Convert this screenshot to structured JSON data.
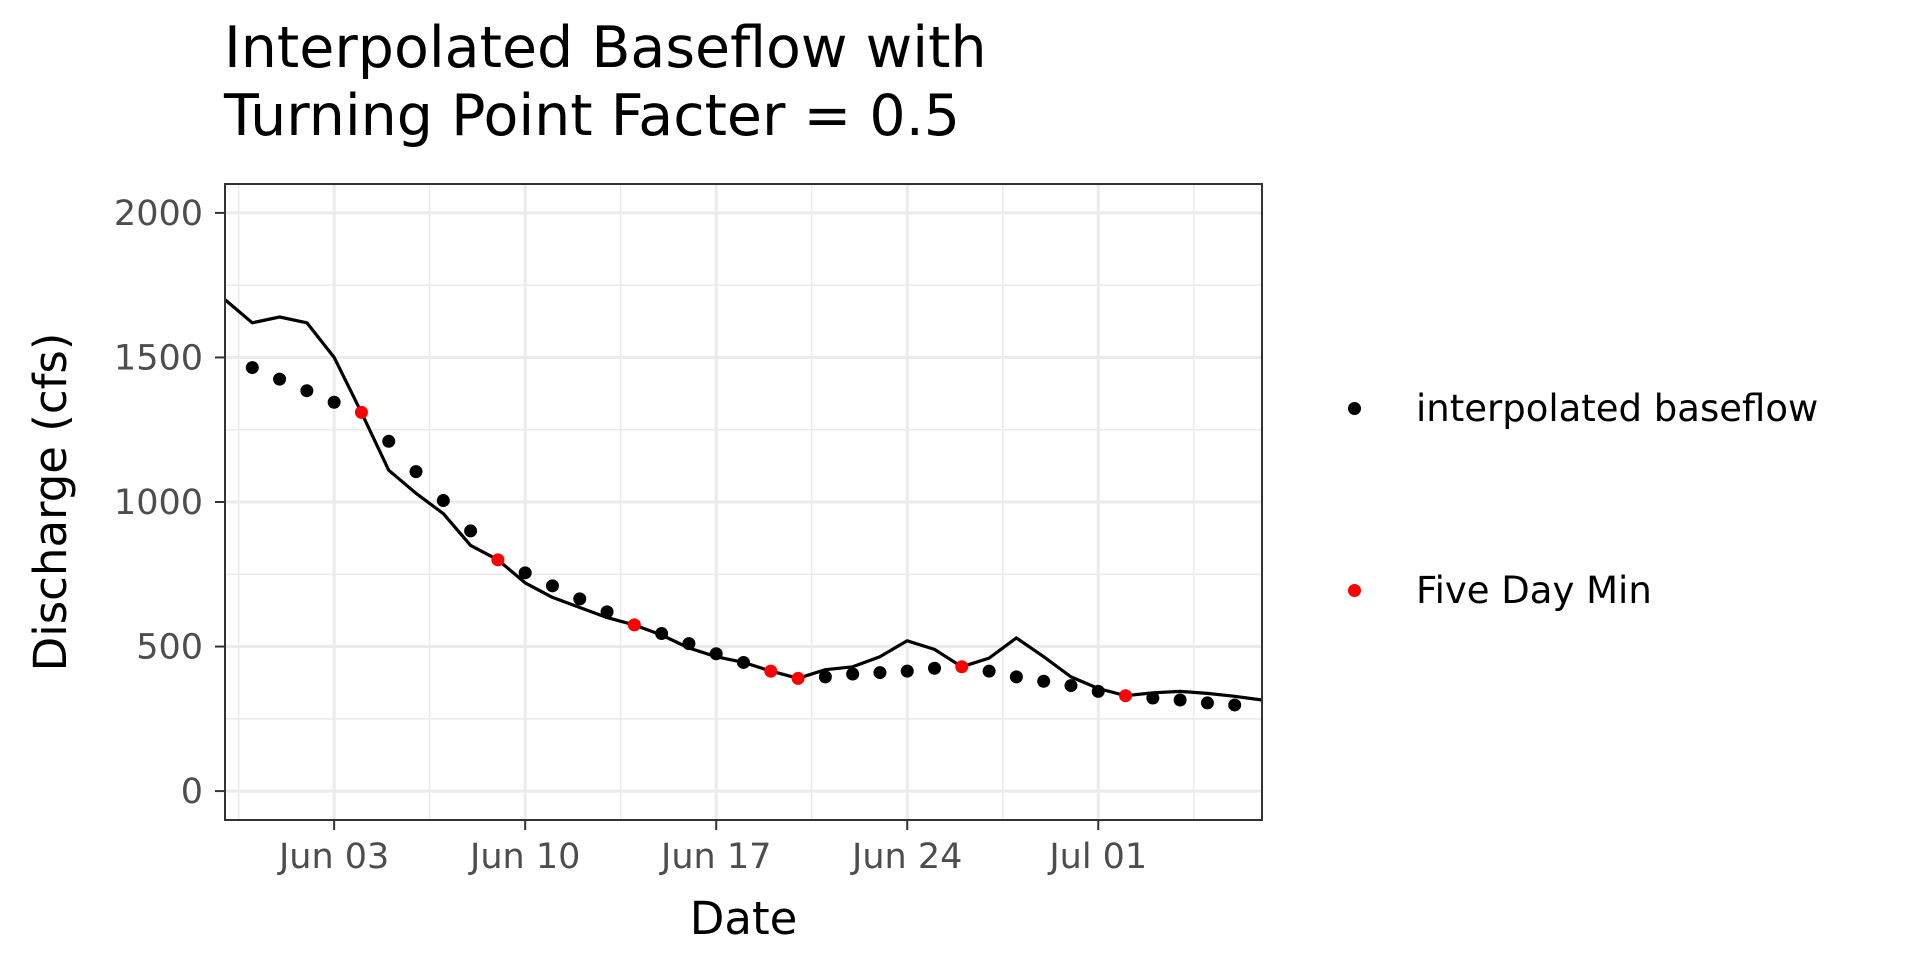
{
  "chart_data": {
    "type": "line",
    "title_lines": [
      "Interpolated Baseflow with",
      "Turning Point Facter = 0.5"
    ],
    "xlabel": "Date",
    "ylabel": "Discharge (cfs)",
    "xlim": [
      "2023-05-30",
      "2023-07-07"
    ],
    "ylim": [
      -100,
      2100
    ],
    "x_ticks": [
      {
        "date": "2023-06-03",
        "label": "Jun 03"
      },
      {
        "date": "2023-06-10",
        "label": "Jun 10"
      },
      {
        "date": "2023-06-17",
        "label": "Jun 17"
      },
      {
        "date": "2023-06-24",
        "label": "Jun 24"
      },
      {
        "date": "2023-07-01",
        "label": "Jul 01"
      }
    ],
    "y_ticks": [
      0,
      500,
      1000,
      1500,
      2000
    ],
    "grid": true,
    "legend_position": "right",
    "series": [
      {
        "kind": "line",
        "color": "#000000",
        "points": [
          [
            "2023-05-30",
            1700
          ],
          [
            "2023-05-31",
            1620
          ],
          [
            "2023-06-01",
            1640
          ],
          [
            "2023-06-02",
            1620
          ],
          [
            "2023-06-03",
            1500
          ],
          [
            "2023-06-04",
            1310
          ],
          [
            "2023-06-05",
            1110
          ],
          [
            "2023-06-06",
            1030
          ],
          [
            "2023-06-07",
            960
          ],
          [
            "2023-06-08",
            850
          ],
          [
            "2023-06-09",
            800
          ],
          [
            "2023-06-10",
            720
          ],
          [
            "2023-06-11",
            670
          ],
          [
            "2023-06-12",
            635
          ],
          [
            "2023-06-13",
            600
          ],
          [
            "2023-06-14",
            575
          ],
          [
            "2023-06-15",
            540
          ],
          [
            "2023-06-16",
            495
          ],
          [
            "2023-06-17",
            465
          ],
          [
            "2023-06-18",
            445
          ],
          [
            "2023-06-19",
            415
          ],
          [
            "2023-06-20",
            390
          ],
          [
            "2023-06-21",
            420
          ],
          [
            "2023-06-22",
            430
          ],
          [
            "2023-06-23",
            465
          ],
          [
            "2023-06-24",
            520
          ],
          [
            "2023-06-25",
            490
          ],
          [
            "2023-06-26",
            430
          ],
          [
            "2023-06-27",
            460
          ],
          [
            "2023-06-28",
            530
          ],
          [
            "2023-06-29",
            465
          ],
          [
            "2023-06-30",
            395
          ],
          [
            "2023-07-01",
            355
          ],
          [
            "2023-07-02",
            330
          ],
          [
            "2023-07-03",
            340
          ],
          [
            "2023-07-04",
            345
          ],
          [
            "2023-07-05",
            338
          ],
          [
            "2023-07-06",
            328
          ],
          [
            "2023-07-07",
            315
          ]
        ]
      },
      {
        "kind": "points",
        "name": "interpolated baseflow",
        "color": "#000000",
        "points": [
          [
            "2023-05-31",
            1465
          ],
          [
            "2023-06-01",
            1425
          ],
          [
            "2023-06-02",
            1385
          ],
          [
            "2023-06-03",
            1345
          ],
          [
            "2023-06-05",
            1210
          ],
          [
            "2023-06-06",
            1105
          ],
          [
            "2023-06-07",
            1005
          ],
          [
            "2023-06-08",
            900
          ],
          [
            "2023-06-10",
            755
          ],
          [
            "2023-06-11",
            710
          ],
          [
            "2023-06-12",
            665
          ],
          [
            "2023-06-13",
            620
          ],
          [
            "2023-06-15",
            545
          ],
          [
            "2023-06-16",
            510
          ],
          [
            "2023-06-17",
            475
          ],
          [
            "2023-06-18",
            445
          ],
          [
            "2023-06-21",
            395
          ],
          [
            "2023-06-22",
            405
          ],
          [
            "2023-06-23",
            410
          ],
          [
            "2023-06-24",
            415
          ],
          [
            "2023-06-25",
            425
          ],
          [
            "2023-06-27",
            415
          ],
          [
            "2023-06-28",
            395
          ],
          [
            "2023-06-29",
            380
          ],
          [
            "2023-06-30",
            365
          ],
          [
            "2023-07-01",
            345
          ],
          [
            "2023-07-03",
            322
          ],
          [
            "2023-07-04",
            315
          ],
          [
            "2023-07-05",
            305
          ],
          [
            "2023-07-06",
            298
          ]
        ]
      },
      {
        "kind": "points",
        "name": "Five Day Min",
        "color": "#ff0000",
        "points": [
          [
            "2023-06-04",
            1310
          ],
          [
            "2023-06-09",
            800
          ],
          [
            "2023-06-14",
            575
          ],
          [
            "2023-06-19",
            415
          ],
          [
            "2023-06-20",
            390
          ],
          [
            "2023-06-26",
            430
          ],
          [
            "2023-07-02",
            330
          ]
        ]
      }
    ]
  }
}
